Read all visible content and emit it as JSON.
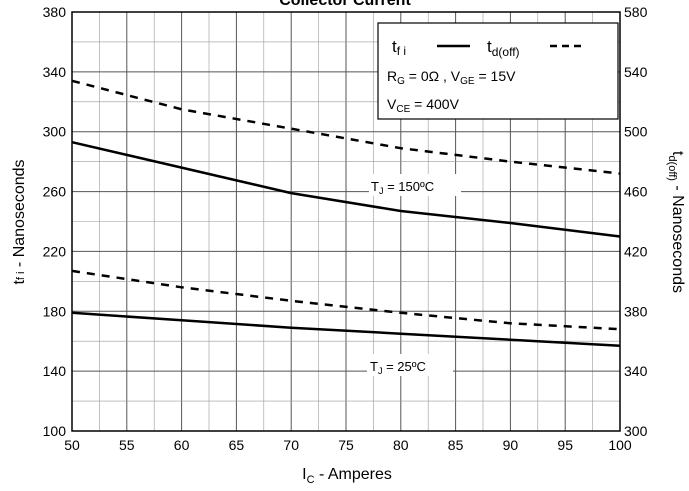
{
  "chart_data": {
    "type": "line",
    "title": "Collector Current",
    "xlabel": {
      "main": "I",
      "sub": "C",
      "rest": " - Amperes"
    },
    "ylabel_left": {
      "main": "t",
      "sub": "f i",
      "rest": " - Nanoseconds"
    },
    "ylabel_right": {
      "main": "t",
      "sub": "d(off)",
      "rest": " - Nanoseconds"
    },
    "xlim": [
      50,
      100
    ],
    "ylim_left": [
      100,
      380
    ],
    "ylim_right": [
      300,
      580
    ],
    "x_ticks": [
      "50",
      "55",
      "60",
      "65",
      "70",
      "75",
      "80",
      "85",
      "90",
      "95",
      "100"
    ],
    "y_left_ticks": [
      "100",
      "140",
      "180",
      "220",
      "260",
      "300",
      "340",
      "380"
    ],
    "y_right_ticks": [
      "300",
      "340",
      "380",
      "420",
      "460",
      "500",
      "540",
      "580"
    ],
    "grid": true,
    "legend": {
      "placement": "top-right",
      "tfi": {
        "main": "t",
        "sub": "f i"
      },
      "tdoff": {
        "main": "t",
        "sub": "d(off)"
      },
      "cond1": {
        "r": "R",
        "rsub": "G",
        "rval": " = 0Ω ,  V",
        "vsub": "GE",
        "vval": " = 15V"
      },
      "cond2": {
        "v": "V",
        "vsub": "CE",
        "vval": " = 400V"
      }
    },
    "annotations": {
      "tj150": {
        "main": "T",
        "sub": "J",
        "rest": " = 150ºC"
      },
      "tj25": {
        "main": "T",
        "sub": "J",
        "rest": " = 25ºC"
      }
    },
    "series": [
      {
        "axis": "left",
        "style": "solid",
        "color": "#000000",
        "x": [
          50,
          60,
          70,
          80,
          90,
          100
        ],
        "y": [
          293,
          276,
          259,
          247,
          239,
          230
        ]
      },
      {
        "axis": "left",
        "style": "solid",
        "color": "#000000",
        "x": [
          50,
          60,
          70,
          80,
          90,
          100
        ],
        "y": [
          179,
          174,
          169,
          165,
          161,
          157
        ]
      },
      {
        "axis": "right",
        "style": "dashed",
        "color": "#000000",
        "x": [
          50,
          60,
          70,
          80,
          90,
          100
        ],
        "y": [
          534,
          515,
          502,
          489,
          480,
          472
        ]
      },
      {
        "axis": "right",
        "style": "dashed",
        "color": "#000000",
        "x": [
          50,
          60,
          70,
          80,
          90,
          100
        ],
        "y": [
          407,
          396,
          387,
          379,
          372,
          368
        ]
      }
    ]
  }
}
